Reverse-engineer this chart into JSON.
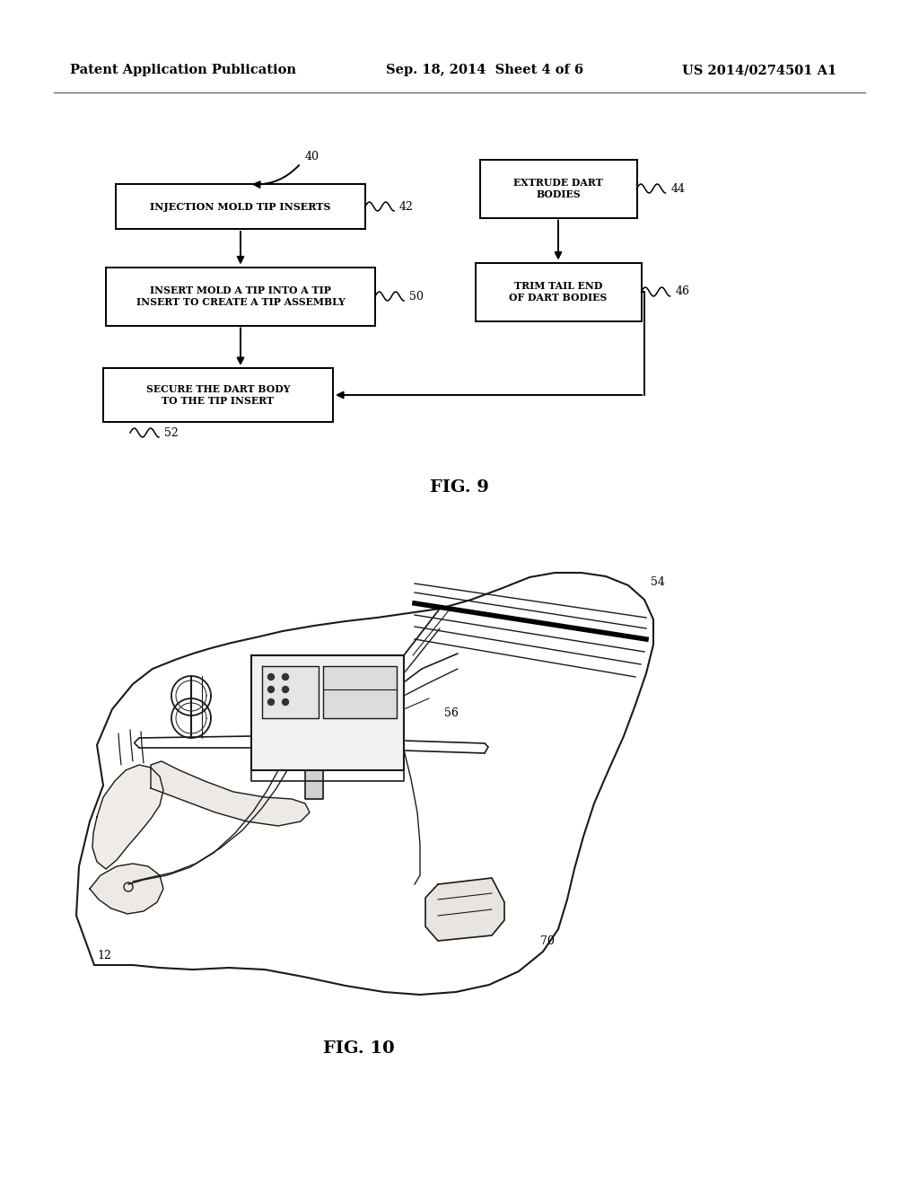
{
  "header_left": "Patent Application Publication",
  "header_center": "Sep. 18, 2014  Sheet 4 of 6",
  "header_right": "US 2014/0274501 A1",
  "fig9_label": "FIG. 9",
  "fig10_label": "FIG. 10",
  "box1_text": "INJECTION MOLD TIP INSERTS",
  "box1_label": "42",
  "box2_text": "INSERT MOLD A TIP INTO A TIP\nINSERT TO CREATE A TIP ASSEMBLY",
  "box2_label": "50",
  "box3_text": "SECURE THE DART BODY\nTO THE TIP INSERT",
  "box3_label": "52",
  "box4_text": "EXTRUDE DART\nBODIES",
  "box4_label": "44",
  "box5_text": "TRIM TAIL END\nOF DART BODIES",
  "box5_label": "46",
  "start_label": "40",
  "label_54": "54",
  "label_56": "56",
  "label_12": "12",
  "label_70": "70",
  "bg_color": "#ffffff",
  "box_color": "#ffffff",
  "box_edge_color": "#000000",
  "text_color": "#000000",
  "line_color": "#000000"
}
